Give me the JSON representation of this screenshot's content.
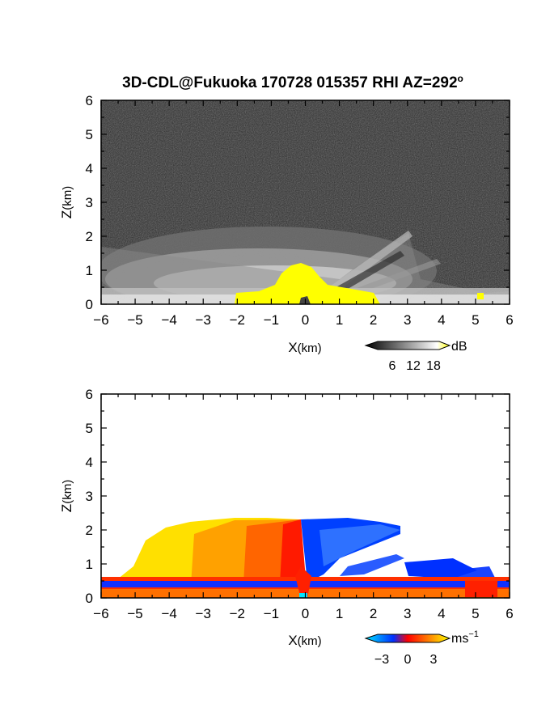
{
  "title_main": "3D-CDL@Fukuoka 170728 015357 RHI AZ=292",
  "title_deg": "o",
  "charts": [
    {
      "type": "heatmap",
      "field": "backscatter",
      "xlabel_main": "X",
      "xlabel_unit": "(km)",
      "ylabel_main": "Z",
      "ylabel_unit": "(km)",
      "xlim": [
        -6,
        6
      ],
      "ylim": [
        0,
        6
      ],
      "xticks": [
        "−6",
        "−5",
        "−4",
        "−3",
        "−2",
        "−1",
        "0",
        "1",
        "2",
        "3",
        "4",
        "5",
        "6"
      ],
      "yticks": [
        "0",
        "1",
        "2",
        "3",
        "4",
        "5",
        "6"
      ],
      "colorbar": {
        "ticks": [
          "6",
          "12",
          "18"
        ],
        "unit": "dB",
        "colors": [
          "#000000",
          "#ffffff",
          "#ffff00"
        ]
      }
    },
    {
      "type": "heatmap",
      "field": "doppler_velocity",
      "xlabel_main": "X",
      "xlabel_unit": "(km)",
      "ylabel_main": "Z",
      "ylabel_unit": "(km)",
      "xlim": [
        -6,
        6
      ],
      "ylim": [
        0,
        6
      ],
      "xticks": [
        "−6",
        "−5",
        "−4",
        "−3",
        "−2",
        "−1",
        "0",
        "1",
        "2",
        "3",
        "4",
        "5",
        "6"
      ],
      "yticks": [
        "0",
        "1",
        "2",
        "3",
        "4",
        "5",
        "6"
      ],
      "colorbar": {
        "ticks": [
          "−3",
          "0",
          "3"
        ],
        "unit": "ms",
        "unit_sup": "−1",
        "colors": [
          "#00e5ff",
          "#0000ff",
          "#ff0000",
          "#ffff00"
        ]
      }
    }
  ]
}
